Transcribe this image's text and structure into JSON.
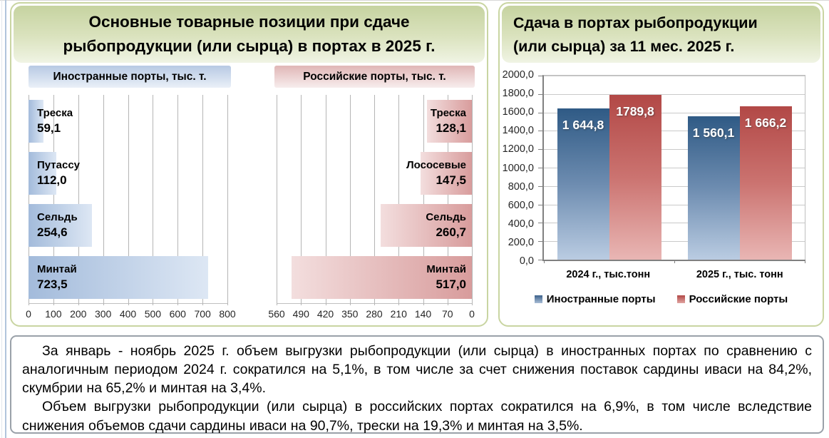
{
  "left_panel": {
    "title_line1": "Основные товарные позиции при сдаче",
    "title_line2": "рыбопродукции (или сырца) в портах в 2025 г."
  },
  "right_panel": {
    "title_line1": "Сдача в портах рыбопродукции",
    "title_line2": "(или сырца) за 11 мес. 2025 г."
  },
  "note": {
    "paragraph1": "За январь - ноябрь 2025 г. объем выгрузки рыбопродукции (или сырца) в иностранных портах по сравнению с аналогичным периодом 2024 г. сократился на 5,1%, в том числе за счет снижения поставок сардины иваси на 84,2%, скумбрии на 65,2% и минтая на 3,4%.",
    "paragraph2": "Объем выгрузки рыбопродукции (или сырца) в российских портах сократился на 6,9%, в том числе вследствие снижения объемов сдачи сардины иваси на 90,7%, трески на 19,3% и минтая на 3,5%."
  },
  "colors": {
    "panel_border": "#c9d5a2",
    "header_gradient_top": "#c6d3a0",
    "header_gradient_bottom": "#f0f4e4",
    "chip_blue_top": "#b7c9e3",
    "chip_blue_bottom": "#eaf0f8",
    "chip_pink_top": "#e0b6b6",
    "chip_pink_bottom": "#f7eded",
    "hbar_blue_start": "#a3bbdb",
    "hbar_blue_end": "#dde7f4",
    "hbar_pink_start": "#d89c9c",
    "hbar_pink_end": "#f3dede",
    "vbar_blue_top": "#2f5a85",
    "vbar_blue_bottom": "#bacce2",
    "vbar_red_top": "#b24846",
    "vbar_red_bottom": "#e9b6b4",
    "note_border": "#9aa1a9"
  },
  "chart_data": [
    {
      "id": "foreign_ports",
      "type": "bar",
      "orientation": "horizontal",
      "title": "Иностранные порты, тыс. т.",
      "categories": [
        "Треска",
        "Путассу",
        "Сельдь",
        "Минтай"
      ],
      "values": [
        59.1,
        112.0,
        254.6,
        723.5
      ],
      "value_labels": [
        "59,1",
        "112,0",
        "254,6",
        "723,5"
      ],
      "axis_max": 800,
      "xlim": [
        0,
        800
      ],
      "ticks": [
        "0",
        "100",
        "200",
        "300",
        "400",
        "500",
        "600",
        "700",
        "800"
      ],
      "grid": true
    },
    {
      "id": "russian_ports",
      "type": "bar",
      "orientation": "horizontal-mirrored",
      "title": "Российские порты, тыс. т.",
      "categories": [
        "Треска",
        "Лососевые",
        "Сельдь",
        "Минтай"
      ],
      "values": [
        128.1,
        147.5,
        260.7,
        517.0
      ],
      "value_labels": [
        "128,1",
        "147,5",
        "260,7",
        "517,0"
      ],
      "axis_max": 560,
      "xlim": [
        560,
        0
      ],
      "ticks": [
        "560",
        "490",
        "420",
        "350",
        "280",
        "210",
        "140",
        "70",
        "0"
      ],
      "grid": true
    },
    {
      "id": "ports_by_year",
      "type": "bar",
      "orientation": "vertical",
      "title": "Сдача в портах рыбопродукции (или сырца) за 11 мес. 2025 г.",
      "categories": [
        "2024 г., тыс.тонн",
        "2025 г., тыс. тонн"
      ],
      "series": [
        {
          "name": "Иностранные порты",
          "values": [
            1644.8,
            1560.1
          ],
          "value_labels": [
            "1 644,8",
            "1 560,1"
          ]
        },
        {
          "name": "Российские порты",
          "values": [
            1789.8,
            1666.2
          ],
          "value_labels": [
            "1789,8",
            "1 666,2"
          ]
        }
      ],
      "ylim": [
        0,
        2000
      ],
      "yticks": [
        "2000,0",
        "1800,0",
        "1600,0",
        "1400,0",
        "1200,0",
        "1000,0",
        "800,0",
        "600,0",
        "400,0",
        "200,0",
        "0,0"
      ],
      "legend_position": "bottom",
      "grid": true
    }
  ]
}
